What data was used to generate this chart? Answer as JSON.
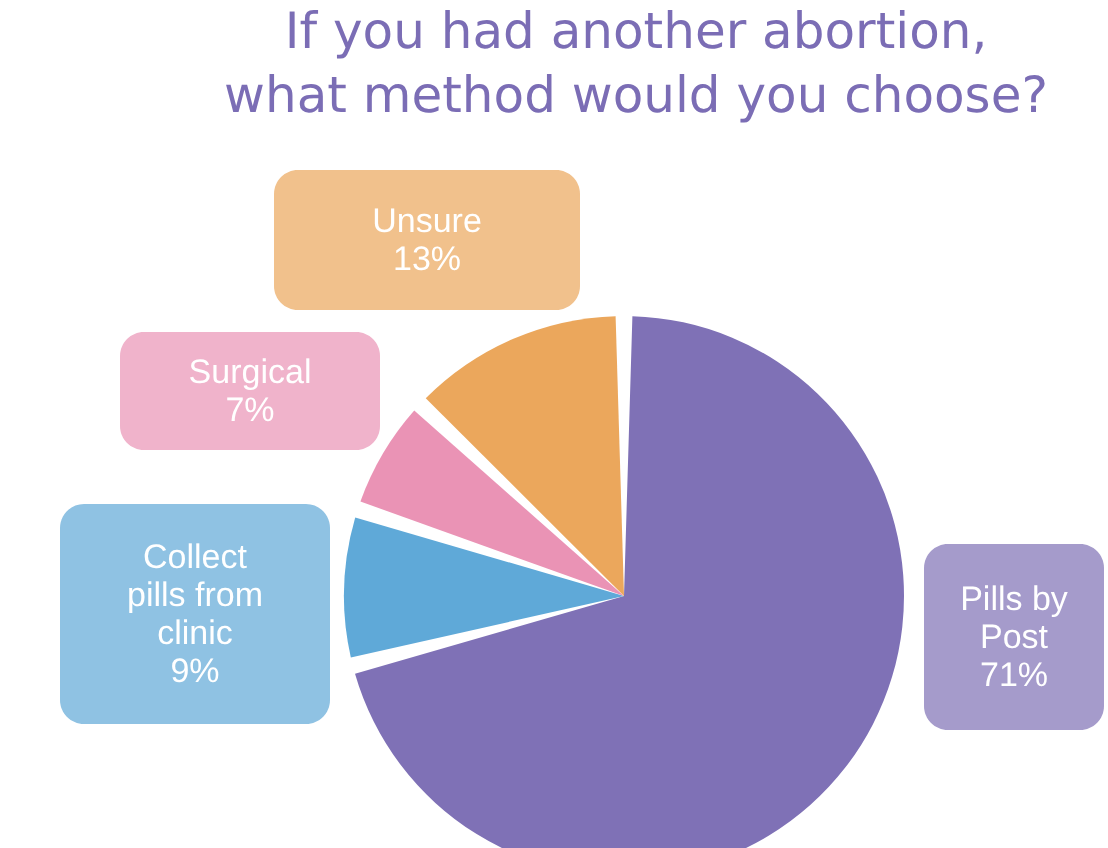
{
  "chart_data": {
    "type": "pie",
    "title": "If you had another abortion, what method would you choose?",
    "categories": [
      "Pills by Post",
      "Collect pills from clinic",
      "Surgical",
      "Unsure"
    ],
    "values": [
      71,
      9,
      7,
      13
    ],
    "value_labels": [
      "71%",
      "9%",
      "7%",
      "13%"
    ],
    "colors": [
      "#7f71b6",
      "#5fa9d8",
      "#ea93b5",
      "#eba75c"
    ]
  }
}
